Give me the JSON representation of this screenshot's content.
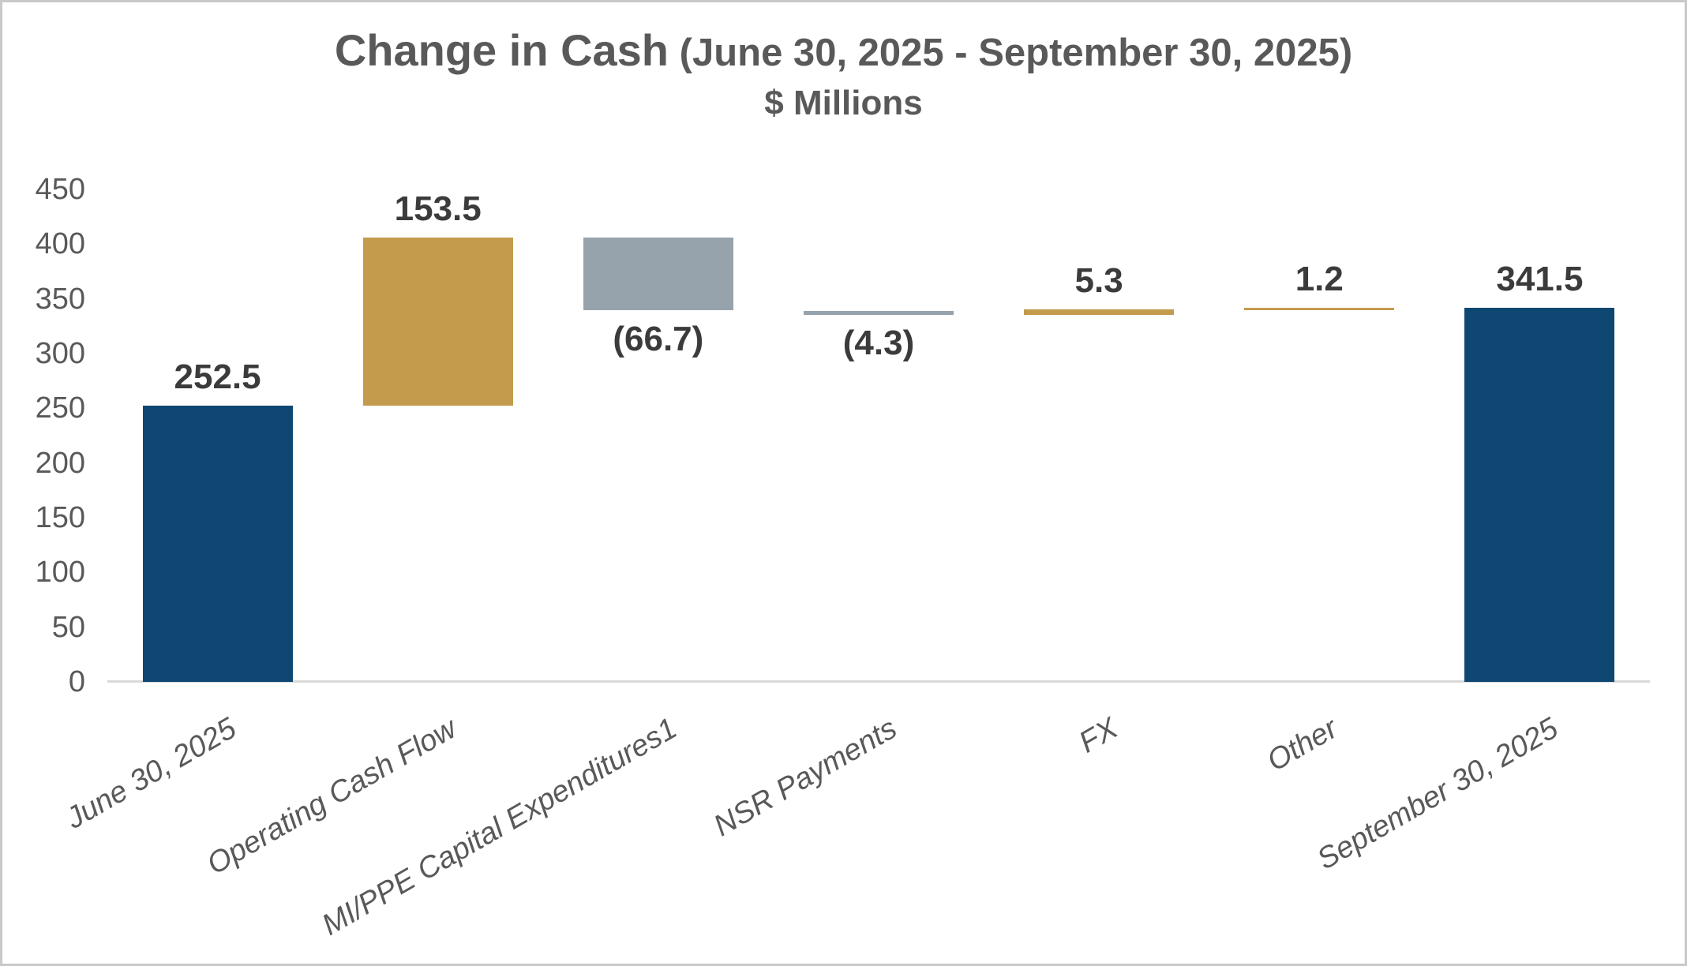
{
  "title": {
    "main": "Change in Cash",
    "range": "(June 30, 2025 - September 30, 2025)",
    "subtitle": "$ Millions"
  },
  "chart_data": {
    "type": "bar",
    "subtype": "waterfall",
    "title": "Change in Cash (June 30, 2025 - September 30, 2025)",
    "subtitle": "$ Millions",
    "grid": false,
    "legend": false,
    "categories": [
      "June 30, 2025",
      "Operating Cash Flow",
      "MI/PPE Capital Expenditures1",
      "NSR Payments",
      "FX",
      "Other",
      "September 30, 2025"
    ],
    "bars": [
      {
        "label": "June 30, 2025",
        "value": 252.5,
        "display": "252.5",
        "kind": "total",
        "color": "navy",
        "label_pos": "above"
      },
      {
        "label": "Operating Cash Flow",
        "value": 153.5,
        "display": "153.5",
        "kind": "increase",
        "color": "gold",
        "label_pos": "above"
      },
      {
        "label": "MI/PPE Capital Expenditures1",
        "value": -66.7,
        "display": "(66.7)",
        "kind": "decrease",
        "color": "gray",
        "label_pos": "below"
      },
      {
        "label": "NSR Payments",
        "value": -4.3,
        "display": "(4.3)",
        "kind": "decrease",
        "color": "gray",
        "label_pos": "below"
      },
      {
        "label": "FX",
        "value": 5.3,
        "display": "5.3",
        "kind": "increase",
        "color": "gold",
        "label_pos": "above"
      },
      {
        "label": "Other",
        "value": 1.2,
        "display": "1.2",
        "kind": "increase",
        "color": "gold",
        "label_pos": "above"
      },
      {
        "label": "September 30, 2025",
        "value": 341.5,
        "display": "341.5",
        "kind": "total",
        "color": "navy",
        "label_pos": "above"
      }
    ],
    "y_axis": {
      "min": 0,
      "max": 450,
      "step": 50,
      "ticks": [
        0,
        50,
        100,
        150,
        200,
        250,
        300,
        350,
        400,
        450
      ]
    },
    "colors": {
      "navy": "#0e4872",
      "gold": "#c49b4c",
      "gray": "#97a3ac",
      "axis_line": "#d9d9d9",
      "axis_text": "#595959",
      "data_label_text": "#3b3b3b"
    }
  }
}
